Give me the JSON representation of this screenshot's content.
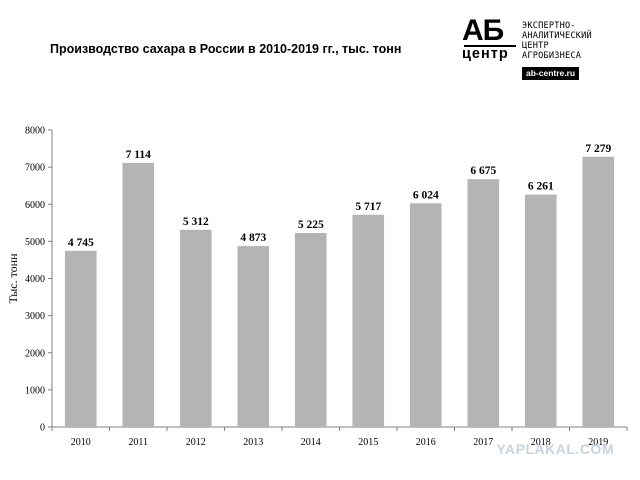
{
  "header": {
    "title": "Производство  сахара  в России в 2010-2019 гг., тыс. тонн"
  },
  "logo": {
    "big_letters": "АБ",
    "small_word": "центр",
    "lines": [
      "ЭКСПЕРТНО-",
      "АНАЛИТИЧЕСКИЙ",
      "ЦЕНТР",
      "АГРОБИЗНЕСА"
    ],
    "url": "ab-centre.ru"
  },
  "watermark": "YAPLAKAL.COM",
  "chart_data": {
    "type": "bar",
    "title": "Производство  сахара  в России в 2010-2019 гг., тыс. тонн",
    "xlabel": "",
    "ylabel": "Тыс. тонн",
    "categories": [
      "2010",
      "2011",
      "2012",
      "2013",
      "2014",
      "2015",
      "2016",
      "2017",
      "2018",
      "2019"
    ],
    "values": [
      4745,
      7114,
      5312,
      4873,
      5225,
      5717,
      6024,
      6675,
      6261,
      7279
    ],
    "data_labels": [
      "4 745",
      "7 114",
      "5 312",
      "4 873",
      "5 225",
      "5 717",
      "6 024",
      "6 675",
      "6 261",
      "7 279"
    ],
    "ylim": [
      0,
      8000
    ],
    "yticks": [
      0,
      1000,
      2000,
      3000,
      4000,
      5000,
      6000,
      7000,
      8000
    ],
    "grid": false,
    "legend": "none",
    "bar_color": "#b4b4b4"
  }
}
